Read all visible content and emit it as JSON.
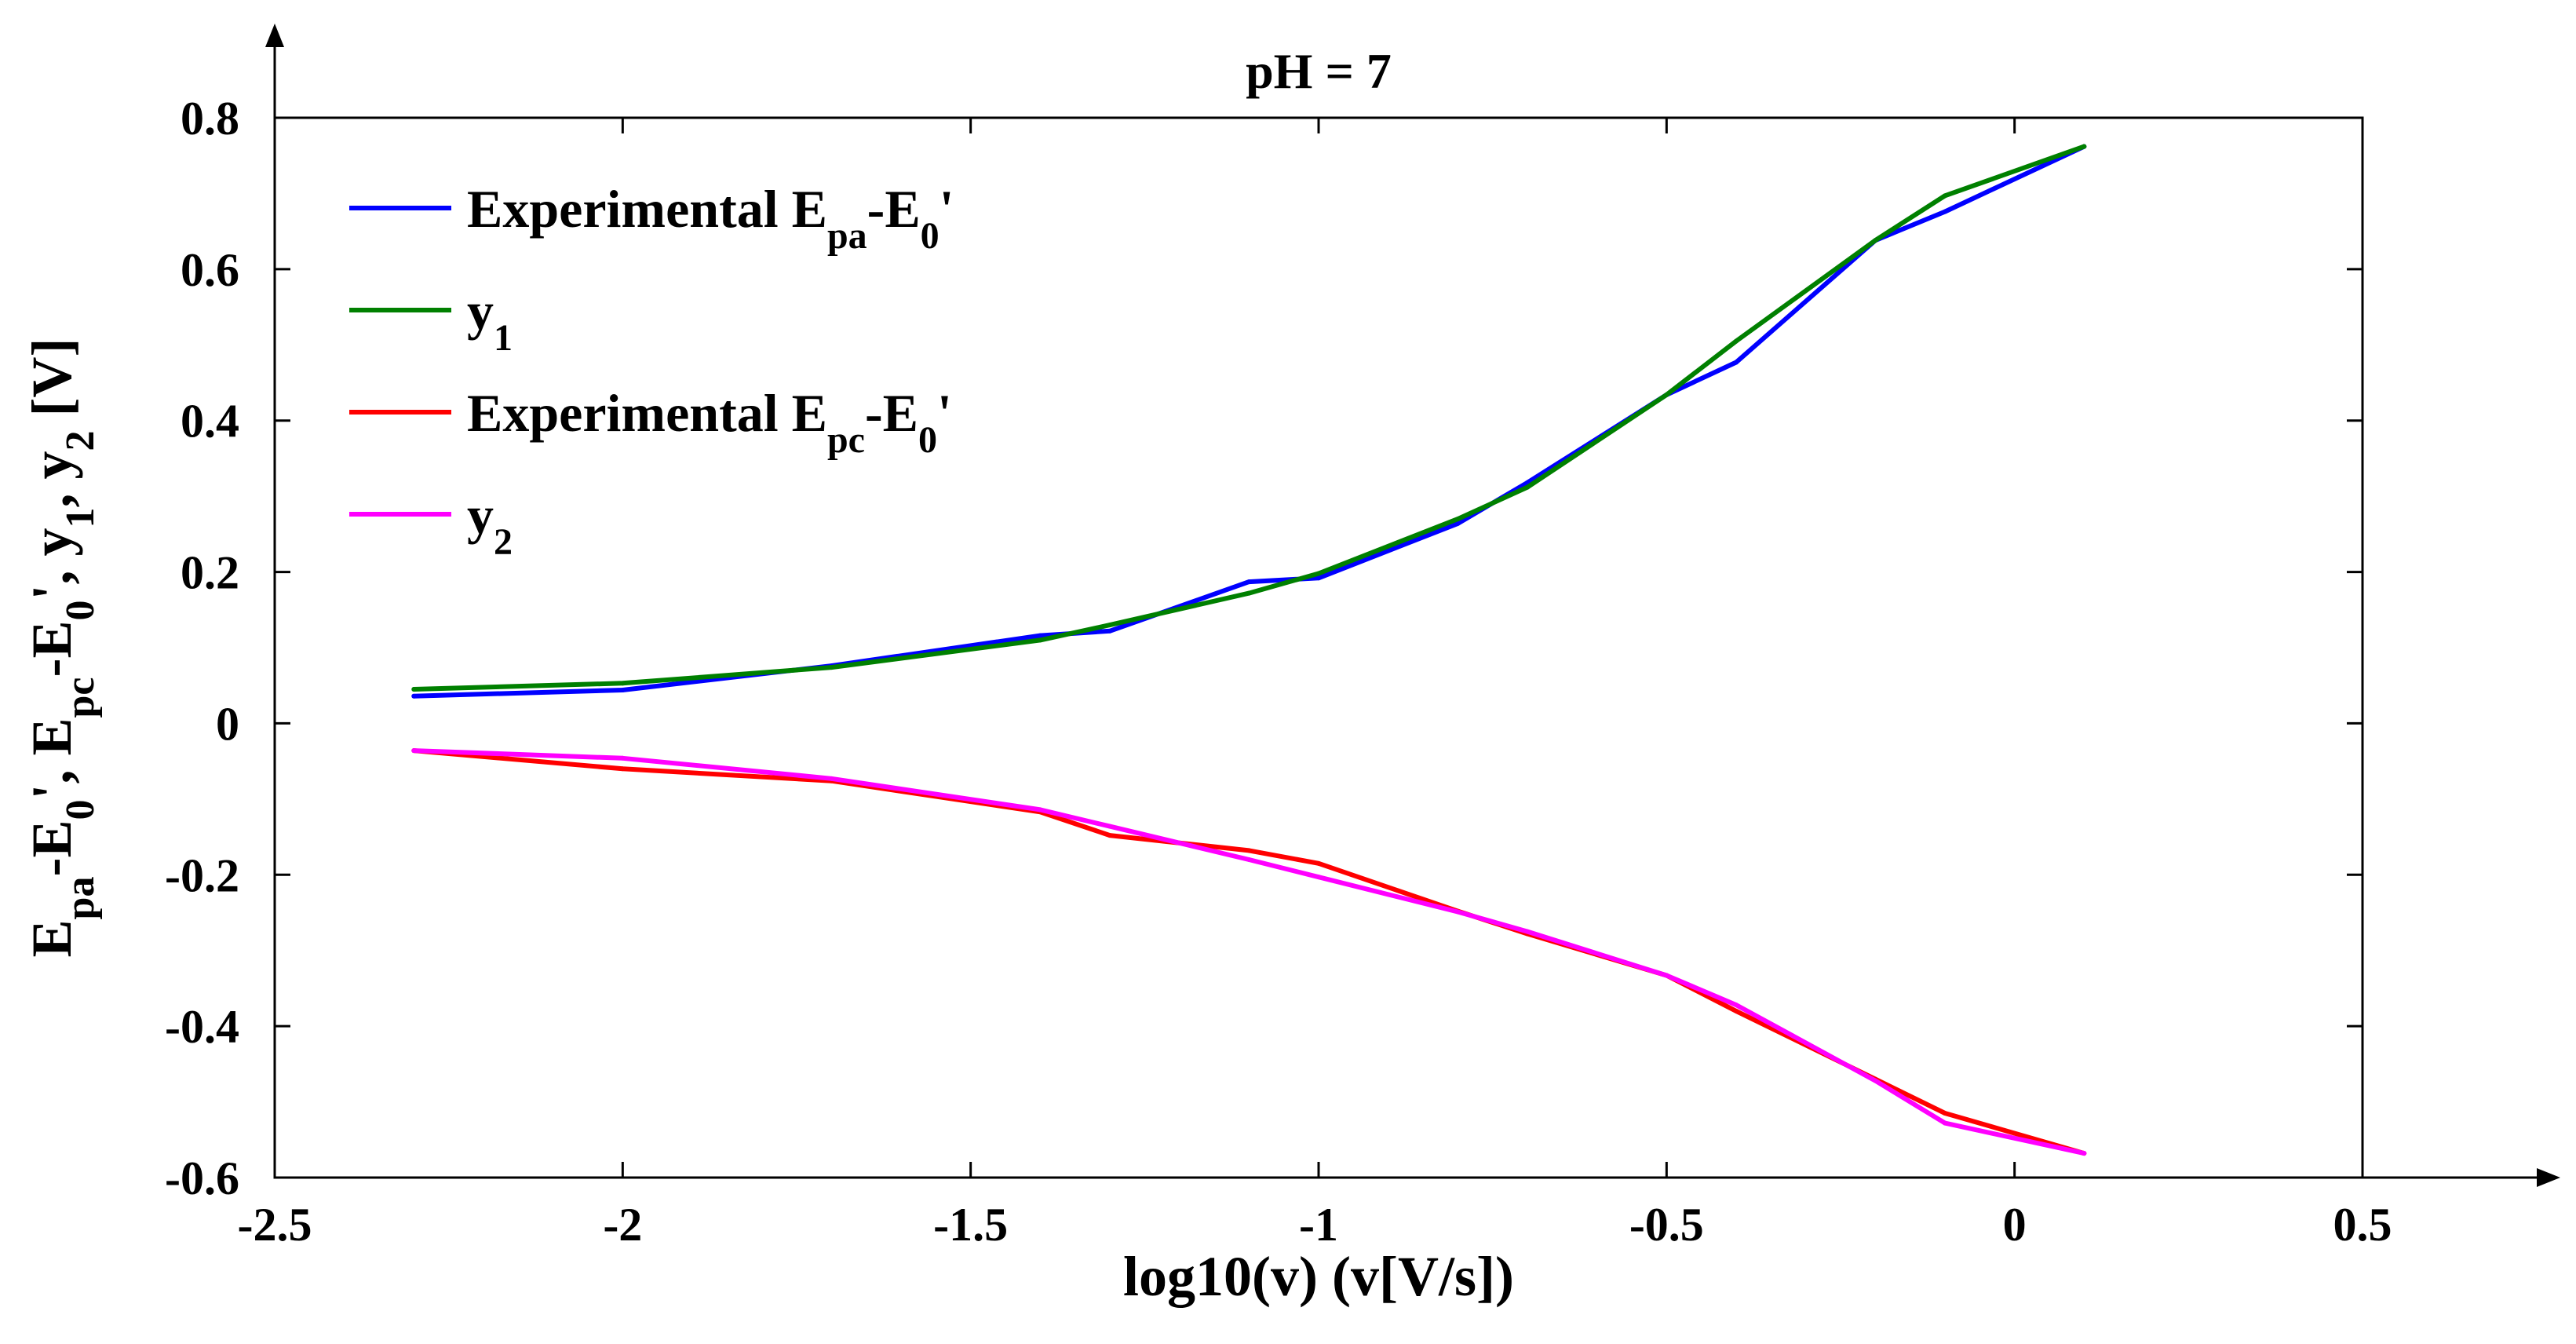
{
  "chart_data": {
    "type": "line",
    "title": "pH = 7",
    "xlabel": "log10(v) (v[V/s])",
    "ylabel": {
      "parts": [
        {
          "t": "E"
        },
        {
          "t": "pa",
          "sub": true
        },
        {
          "t": "-E"
        },
        {
          "t": "0",
          "sub": true
        },
        {
          "t": "', E"
        },
        {
          "t": "pc",
          "sub": true
        },
        {
          "t": "-E"
        },
        {
          "t": "0",
          "sub": true
        },
        {
          "t": "', y"
        },
        {
          "t": "1",
          "sub": true
        },
        {
          "t": ", y"
        },
        {
          "t": "2",
          "sub": true
        },
        {
          "t": " [V]"
        }
      ]
    },
    "xlim": [
      -2.5,
      0.5
    ],
    "ylim": [
      -0.6,
      0.8
    ],
    "xticks": [
      -2.5,
      -2,
      -1.5,
      -1,
      -0.5,
      0,
      0.5
    ],
    "xtick_labels": [
      "-2.5",
      "-2",
      "-1.5",
      "-1",
      "-0.5",
      "0",
      "0.5"
    ],
    "yticks": [
      -0.6,
      -0.4,
      -0.2,
      0,
      0.2,
      0.4,
      0.6,
      0.8
    ],
    "ytick_labels": [
      "-0.6",
      "-0.4",
      "-0.2",
      "0",
      "0.2",
      "0.4",
      "0.6",
      "0.8"
    ],
    "grid": false,
    "legend_position": "top-left",
    "series": [
      {
        "name": "Experimental E_pa-E_0'",
        "legend": [
          {
            "t": "Experimental E"
          },
          {
            "t": "pa",
            "sub": true
          },
          {
            "t": "-E"
          },
          {
            "t": "0",
            "sub": true
          },
          {
            "t": "'"
          }
        ],
        "color": "#0000ff",
        "x": [
          -2.3,
          -2.0,
          -1.7,
          -1.4,
          -1.3,
          -1.1,
          -1.0,
          -0.8,
          -0.7,
          -0.5,
          -0.4,
          -0.2,
          -0.1,
          0.1
        ],
        "y": [
          0.036,
          0.044,
          0.076,
          0.116,
          0.122,
          0.187,
          0.192,
          0.264,
          0.318,
          0.434,
          0.477,
          0.638,
          0.676,
          0.762
        ]
      },
      {
        "name": "y_1",
        "legend": [
          {
            "t": "y"
          },
          {
            "t": "1",
            "sub": true
          }
        ],
        "color": "#008000",
        "x": [
          -2.3,
          -2.0,
          -1.7,
          -1.4,
          -1.3,
          -1.1,
          -1.0,
          -0.8,
          -0.7,
          -0.5,
          -0.4,
          -0.2,
          -0.1,
          0.1
        ],
        "y": [
          0.045,
          0.053,
          0.074,
          0.11,
          0.13,
          0.172,
          0.198,
          0.27,
          0.312,
          0.434,
          0.505,
          0.638,
          0.697,
          0.762
        ]
      },
      {
        "name": "Experimental E_pc-E_0'",
        "legend": [
          {
            "t": "Experimental E"
          },
          {
            "t": "pc",
            "sub": true
          },
          {
            "t": "-E"
          },
          {
            "t": "0",
            "sub": true
          },
          {
            "t": "'"
          }
        ],
        "color": "#ff0000",
        "x": [
          -2.3,
          -2.0,
          -1.7,
          -1.4,
          -1.3,
          -1.1,
          -1.0,
          -0.8,
          -0.7,
          -0.5,
          -0.4,
          -0.2,
          -0.1,
          0.1
        ],
        "y": [
          -0.036,
          -0.06,
          -0.076,
          -0.117,
          -0.148,
          -0.168,
          -0.185,
          -0.248,
          -0.278,
          -0.333,
          -0.38,
          -0.47,
          -0.515,
          -0.568
        ]
      },
      {
        "name": "y_2",
        "legend": [
          {
            "t": "y"
          },
          {
            "t": "2",
            "sub": true
          }
        ],
        "color": "#ff00ff",
        "x": [
          -2.3,
          -2.0,
          -1.7,
          -1.4,
          -1.3,
          -1.1,
          -1.0,
          -0.8,
          -0.7,
          -0.5,
          -0.4,
          -0.2,
          -0.1,
          0.1
        ],
        "y": [
          -0.036,
          -0.046,
          -0.073,
          -0.114,
          -0.136,
          -0.18,
          -0.203,
          -0.249,
          -0.275,
          -0.333,
          -0.372,
          -0.472,
          -0.528,
          -0.568
        ]
      }
    ]
  }
}
